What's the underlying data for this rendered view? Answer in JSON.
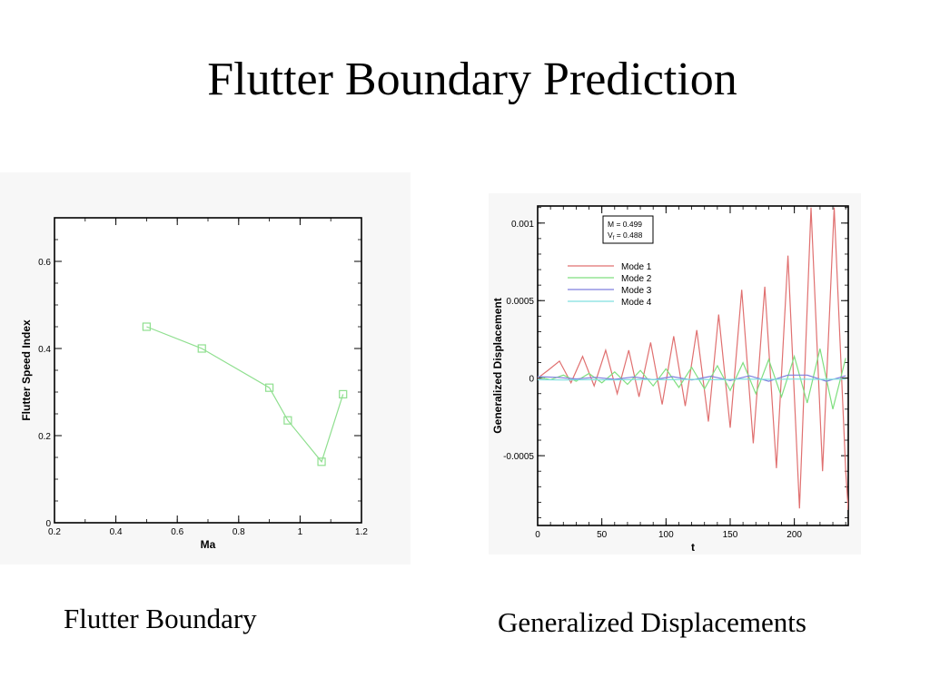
{
  "slide": {
    "title": "Flutter Boundary Prediction",
    "caption_left": "Flutter Boundary",
    "caption_right": "Generalized Displacements"
  },
  "chart_data": [
    {
      "type": "line",
      "title": "",
      "xlabel": "Ma",
      "ylabel": "Flutter Speed Index",
      "xlim": [
        0.2,
        1.2
      ],
      "ylim": [
        0,
        0.7
      ],
      "xticks": [
        0.2,
        0.4,
        0.6,
        0.8,
        1,
        1.2
      ],
      "xtick_labels": [
        "0.2",
        "0.4",
        "0.6",
        "0.8",
        "1",
        "1.2"
      ],
      "yticks": [
        0,
        0.2,
        0.4,
        0.6
      ],
      "ytick_labels": [
        "0",
        "0.2",
        "0.4",
        "0.6"
      ],
      "grid": false,
      "legend": "none",
      "series": [
        {
          "color": "#8fdf8f",
          "marker": "square",
          "x": [
            0.5,
            0.68,
            0.9,
            0.96,
            1.07,
            1.14
          ],
          "y": [
            0.45,
            0.4,
            0.31,
            0.235,
            0.14,
            0.295
          ]
        }
      ]
    },
    {
      "type": "line",
      "title": "",
      "xlabel": "t",
      "ylabel": "Generalized Displacement",
      "xlim": [
        0,
        242
      ],
      "ylim": [
        -0.00095,
        0.00111
      ],
      "xticks": [
        0,
        50,
        100,
        150,
        200
      ],
      "xtick_labels": [
        "0",
        "50",
        "100",
        "150",
        "200"
      ],
      "yticks": [
        -0.0005,
        0,
        0.0005,
        0.001
      ],
      "ytick_labels": [
        "-0.0005",
        "0",
        "0.0005",
        "0.001"
      ],
      "grid": false,
      "legend": "top-left",
      "annotation": [
        "M = 0.499",
        "V",
        "f",
        " = 0.488"
      ],
      "series": [
        {
          "name": "Mode 1",
          "color": "#e07070",
          "x": [
            0,
            8,
            17,
            26,
            35,
            44,
            53,
            62,
            71,
            79,
            88,
            97,
            106,
            115,
            124,
            133,
            141,
            150,
            159,
            168,
            177,
            186,
            195,
            204,
            213,
            222,
            231,
            240,
            242
          ],
          "y": [
            0,
            5e-05,
            0.00011,
            -3e-05,
            0.00014,
            -5e-05,
            0.00018,
            -0.0001,
            0.00018,
            -0.00012,
            0.00023,
            -0.00017,
            0.00027,
            -0.00018,
            0.00031,
            -0.00028,
            0.00041,
            -0.00032,
            0.00057,
            -0.00042,
            0.00059,
            -0.00058,
            0.00079,
            -0.00084,
            0.0011,
            -0.0006,
            0.0011,
            -0.0006,
            -0.00085
          ]
        },
        {
          "name": "Mode 2",
          "color": "#7fdf7f",
          "x": [
            0,
            10,
            20,
            30,
            40,
            50,
            60,
            70,
            80,
            90,
            100,
            110,
            120,
            130,
            140,
            150,
            160,
            170,
            180,
            190,
            200,
            210,
            220,
            230,
            240
          ],
          "y": [
            1e-05,
            -1e-05,
            2e-05,
            -2e-05,
            3e-05,
            -3e-05,
            4e-05,
            -4e-05,
            5e-05,
            -5e-05,
            6e-05,
            -6e-05,
            7e-05,
            -7e-05,
            8e-05,
            -8e-05,
            0.0001,
            -0.0001,
            0.00012,
            -0.00012,
            0.00014,
            -0.00016,
            0.00019,
            -0.0002,
            0.00013
          ]
        },
        {
          "name": "Mode 3",
          "color": "#7f7fdf",
          "x": [
            0,
            15,
            30,
            45,
            60,
            75,
            90,
            105,
            120,
            135,
            150,
            165,
            180,
            195,
            210,
            225,
            240
          ],
          "y": [
            1e-05,
            5e-06,
            -5e-06,
            5e-06,
            -8e-06,
            8e-06,
            -1e-05,
            1e-05,
            -1.2e-05,
            1.2e-05,
            -1.5e-05,
            1.5e-05,
            -2e-05,
            2e-05,
            2e-05,
            -2e-05,
            1.5e-05
          ]
        },
        {
          "name": "Mode 4",
          "color": "#7fdfdf",
          "x": [
            0,
            20,
            40,
            60,
            80,
            100,
            120,
            140,
            160,
            180,
            200,
            220,
            240
          ],
          "y": [
            -1e-05,
            -1.2e-05,
            -1e-05,
            -1.2e-05,
            -8e-06,
            -1e-05,
            -8e-06,
            -1e-05,
            -6e-06,
            -8e-06,
            -6e-06,
            -8e-06,
            -6e-06
          ]
        }
      ]
    }
  ]
}
